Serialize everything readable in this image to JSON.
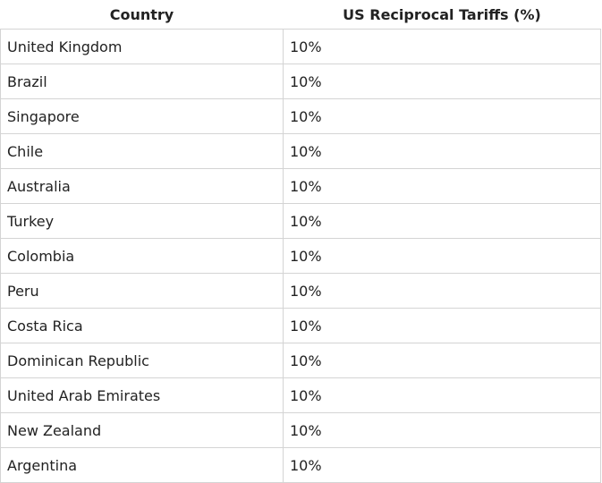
{
  "table": {
    "header": [
      "Country",
      "US Reciprocal Tariffs (%)"
    ],
    "rows": [
      [
        "United Kingdom",
        "10%"
      ],
      [
        "Brazil",
        "10%"
      ],
      [
        "Singapore",
        "10%"
      ],
      [
        "Chile",
        "10%"
      ],
      [
        "Australia",
        "10%"
      ],
      [
        "Turkey",
        "10%"
      ],
      [
        "Colombia",
        "10%"
      ],
      [
        "Peru",
        "10%"
      ],
      [
        "Costa Rica",
        "10%"
      ],
      [
        "Dominican Republic",
        "10%"
      ],
      [
        "United Arab Emirates",
        "10%"
      ],
      [
        "New Zealand",
        "10%"
      ],
      [
        "Argentina",
        "10%"
      ]
    ]
  }
}
